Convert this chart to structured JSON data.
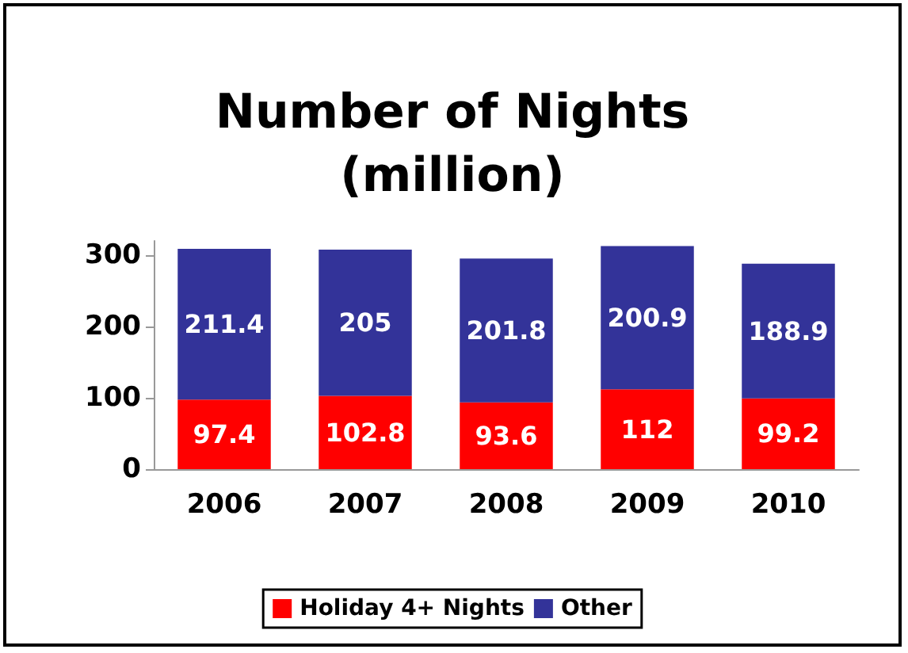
{
  "chart_data": {
    "type": "bar",
    "title": "Number of Nights\n(million)",
    "categories": [
      "2006",
      "2007",
      "2008",
      "2009",
      "2010"
    ],
    "stacked": true,
    "series": [
      {
        "name": "Holiday 4+ Nights",
        "color": "#ff0000",
        "values": [
          97.4,
          102.8,
          93.6,
          112,
          99.2
        ]
      },
      {
        "name": "Other",
        "color": "#333399",
        "values": [
          211.4,
          205,
          201.8,
          200.9,
          188.9
        ]
      }
    ],
    "ylim": [
      0,
      320
    ],
    "yticks": [
      0,
      100,
      200,
      300
    ],
    "grid": false,
    "legend": "bottom",
    "data_labels": true
  }
}
